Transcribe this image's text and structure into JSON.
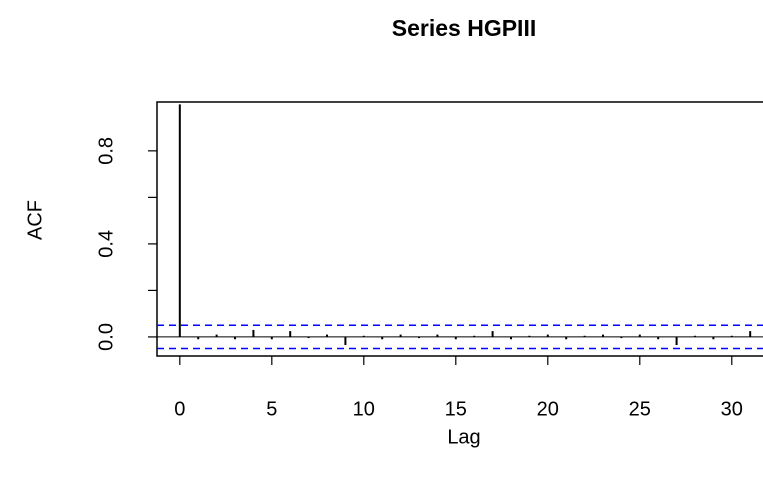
{
  "chart_data": {
    "type": "acf",
    "title": "Series  HGPIII",
    "x_label": "Lag",
    "y_label": "ACF",
    "x": [
      0,
      1,
      2,
      3,
      4,
      5,
      6,
      7,
      8,
      9,
      10,
      11,
      12,
      13,
      14,
      15,
      16,
      17,
      18,
      19,
      20,
      21,
      22,
      23,
      24,
      25,
      26,
      27,
      28,
      29,
      30,
      31
    ],
    "values": [
      1,
      -0.01,
      0.01,
      -0.01,
      0.03,
      -0.01,
      0.025,
      -0.005,
      0.01,
      -0.035,
      0.005,
      -0.01,
      0.01,
      -0.005,
      0.01,
      -0.01,
      0.005,
      0.025,
      -0.01,
      0.005,
      0.01,
      -0.01,
      0.005,
      0.01,
      -0.005,
      0.01,
      -0.01,
      -0.035,
      0.005,
      -0.01,
      0.005,
      0.025
    ],
    "color": "#000000",
    "ci": [
      0.05,
      -0.05
    ],
    "ci_color": "#0000ff",
    "xlim": [
      -1.24,
      32.24
    ],
    "xticks": [
      0,
      5,
      10,
      15,
      20,
      25,
      30
    ],
    "ylim": [
      -0.082,
      1.01
    ],
    "yticks": [
      {
        "value": 0,
        "label": "0.0"
      },
      0.4,
      0.8
    ],
    "yticks_minor": [
      0.2,
      0.6
    ]
  }
}
